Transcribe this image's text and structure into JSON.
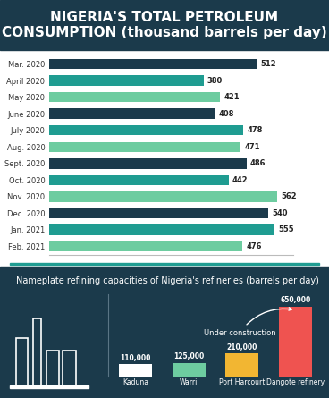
{
  "chart_data": [
    {
      "type": "bar",
      "orientation": "horizontal",
      "title": "NIGERIA'S TOTAL PETROLEUM CONSUMPTION (thousand barrels per day)",
      "categories": [
        "Mar. 2020",
        "April 2020",
        "May 2020",
        "June 2020",
        "July 2020",
        "Aug. 2020",
        "Sept. 2020",
        "Oct. 2020",
        "Nov. 2020",
        "Dec. 2020",
        "Jan. 2021",
        "Feb. 2021"
      ],
      "values": [
        512,
        380,
        421,
        408,
        478,
        471,
        486,
        442,
        562,
        540,
        555,
        476
      ],
      "colors": [
        "#1b3a4b",
        "#1f9c91",
        "#6dcca0",
        "#1b3a4b",
        "#1f9c91",
        "#6dcca0",
        "#1b3a4b",
        "#1f9c91",
        "#6dcca0",
        "#1b3a4b",
        "#1f9c91",
        "#6dcca0"
      ],
      "xlim": [
        0,
        600
      ],
      "xticks": [],
      "data_labels": true,
      "tick_labels": "y",
      "grid": false
    },
    {
      "type": "bar",
      "title": "Nameplate refining capacities of Nigeria's refineries (barrels per day)",
      "categories": [
        "Kaduna",
        "Warri",
        "Port Harcourt",
        "Dangote refinery"
      ],
      "values": [
        110000,
        125000,
        210000,
        650000
      ],
      "value_labels": [
        "110,000",
        "125,000",
        "210,000",
        "650,000"
      ],
      "colors": [
        "#ffffff",
        "#6dcca0",
        "#f2b632",
        "#ef5350"
      ],
      "annotation": "Under construction",
      "ylim": [
        0,
        760000
      ],
      "yticks": [],
      "data_labels": true,
      "tick_labels": "x",
      "grid": false
    }
  ]
}
